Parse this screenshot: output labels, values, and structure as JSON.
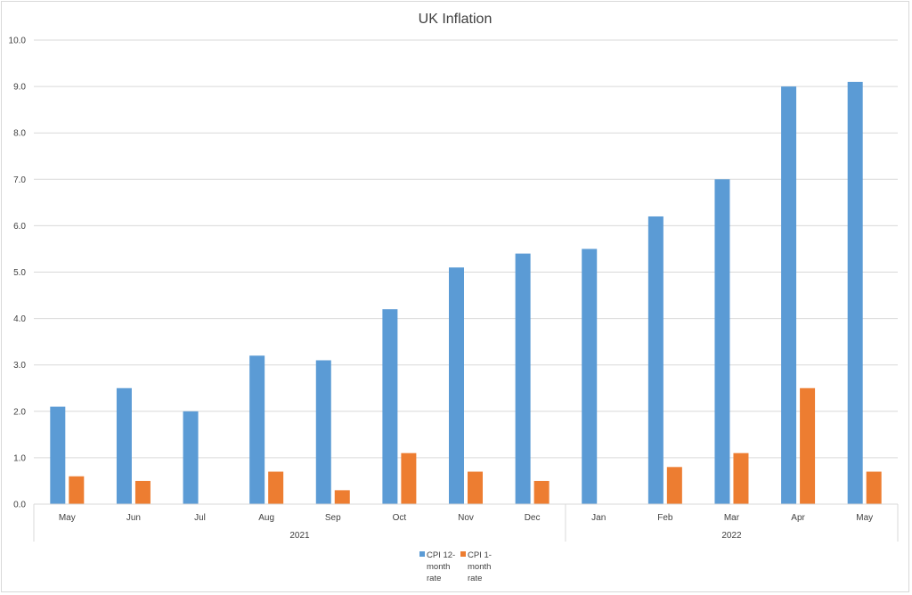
{
  "chart_data": {
    "type": "bar",
    "title": "UK Inflation",
    "xlabel": "",
    "ylabel": "",
    "ylim": [
      0,
      10
    ],
    "yticks": [
      "0.0",
      "1.0",
      "2.0",
      "3.0",
      "4.0",
      "5.0",
      "6.0",
      "7.0",
      "8.0",
      "9.0",
      "10.0"
    ],
    "categories": [
      "May",
      "Jun",
      "Jul",
      "Aug",
      "Sep",
      "Oct",
      "Nov",
      "Dec",
      "Jan",
      "Feb",
      "Mar",
      "Apr",
      "May"
    ],
    "groups": [
      {
        "label": "2021",
        "count": 8
      },
      {
        "label": "2022",
        "count": 5
      }
    ],
    "series": [
      {
        "name": "CPI 12-month rate",
        "name_lines": [
          "CPI 12-",
          "month",
          "rate"
        ],
        "color": "#5b9bd5",
        "values": [
          2.1,
          2.5,
          2.0,
          3.2,
          3.1,
          4.2,
          5.1,
          5.4,
          5.5,
          6.2,
          7.0,
          9.0,
          9.1
        ]
      },
      {
        "name": "CPI 1-month rate",
        "name_lines": [
          "CPI 1-",
          "month",
          "rate"
        ],
        "color": "#ed7d31",
        "values": [
          0.6,
          0.5,
          0.0,
          0.7,
          0.3,
          1.1,
          0.7,
          0.5,
          0.0,
          0.8,
          1.1,
          2.5,
          0.7
        ]
      }
    ],
    "grid": true,
    "legend_position": "bottom"
  }
}
